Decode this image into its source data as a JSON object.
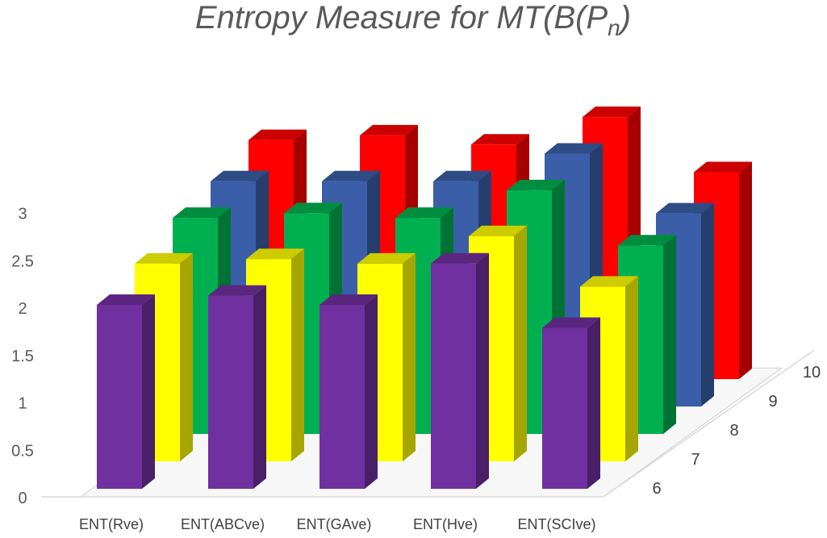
{
  "chart_data": {
    "type": "bar",
    "title_main": "Entropy Measure for MT(B(P",
    "title_sub": "n",
    "title_close": ")",
    "categories": [
      "ENT(Rve)",
      "ENT(ABCve)",
      "ENT(GAve)",
      "ENT(Hve)",
      "ENT(SCIve)"
    ],
    "series": [
      {
        "name": "6",
        "values": [
          2.0,
          2.1,
          2.0,
          2.45,
          1.75
        ],
        "color": "#7030A0"
      },
      {
        "name": "7",
        "values": [
          2.15,
          2.2,
          2.15,
          2.45,
          1.9
        ],
        "color": "#FFFF00"
      },
      {
        "name": "8",
        "values": [
          2.35,
          2.4,
          2.35,
          2.65,
          2.05
        ],
        "color": "#00B050"
      },
      {
        "name": "9",
        "values": [
          2.45,
          2.45,
          2.45,
          2.75,
          2.1
        ],
        "color": "#3A5FA8"
      },
      {
        "name": "10",
        "values": [
          2.6,
          2.65,
          2.55,
          2.85,
          2.25
        ],
        "color": "#FF0000"
      }
    ],
    "y_ticks": [
      "0",
      "0.5",
      "1",
      "1.5",
      "2",
      "2.5",
      "3"
    ],
    "ylim": [
      0,
      3
    ],
    "grid": false,
    "view": "3d-column"
  }
}
